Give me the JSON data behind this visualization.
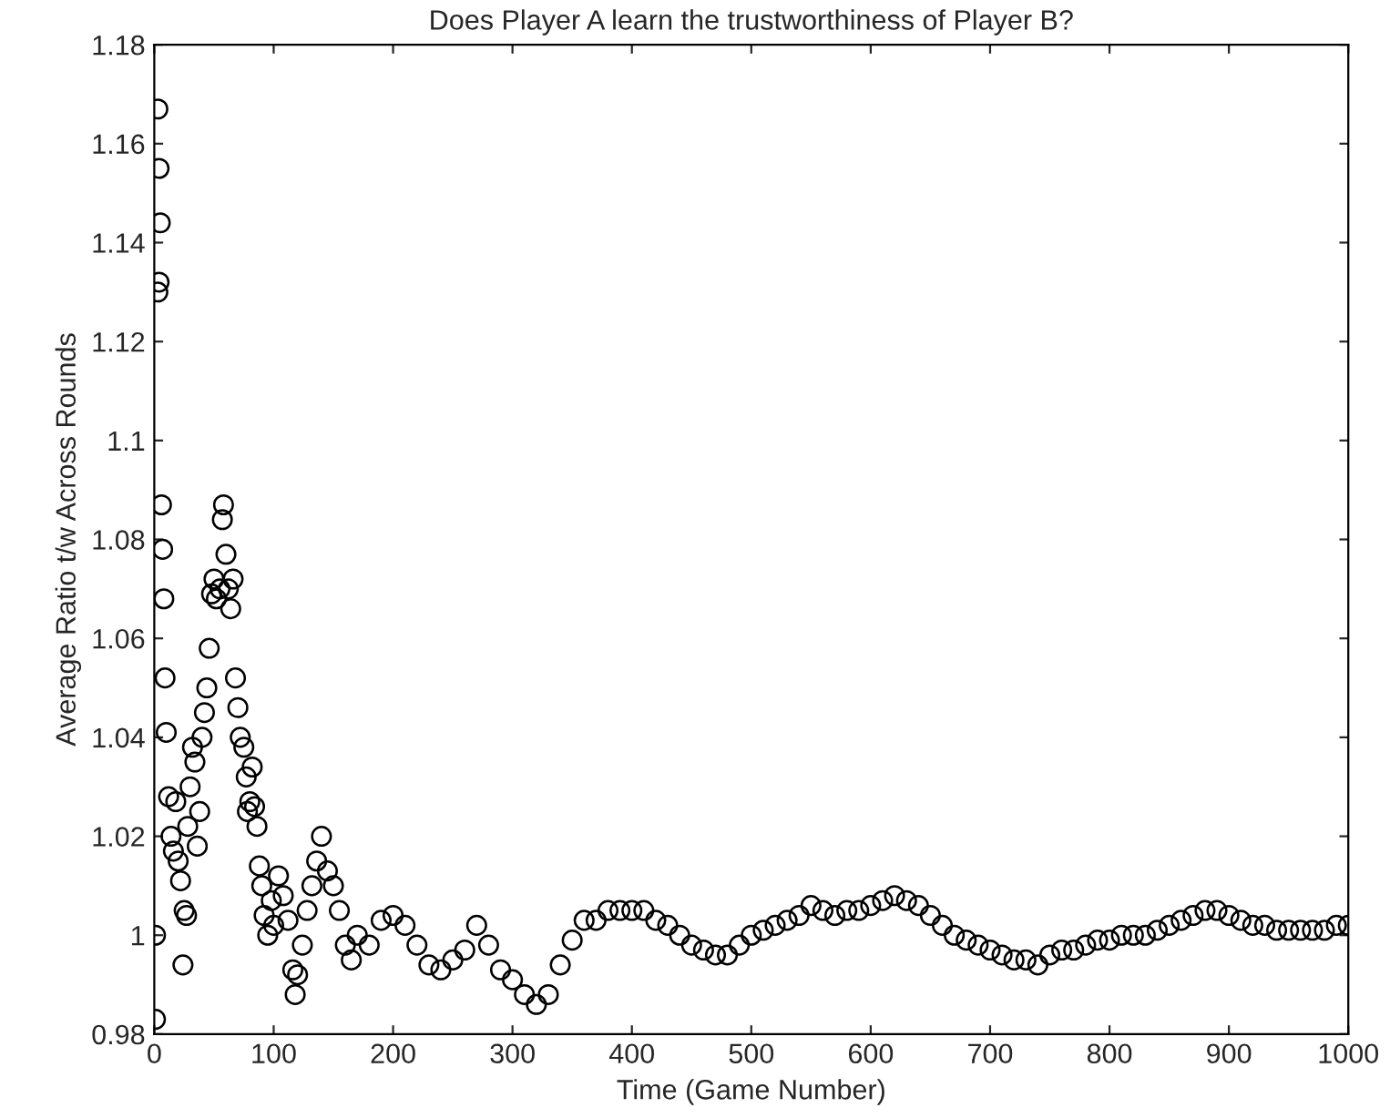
{
  "chart_data": {
    "type": "scatter",
    "title": "Does Player A learn the trustworthiness of Player B?",
    "xlabel": "Time (Game Number)",
    "ylabel": "Average Ratio t/w Across Rounds",
    "xlim": [
      0,
      1000
    ],
    "ylim": [
      0.98,
      1.18
    ],
    "xticks": [
      0,
      100,
      200,
      300,
      400,
      500,
      600,
      700,
      800,
      900,
      1000
    ],
    "yticks": [
      {
        "value": 0.98,
        "label": "0.98"
      },
      {
        "value": 1.0,
        "label": "1"
      },
      {
        "value": 1.02,
        "label": "1.02"
      },
      {
        "value": 1.04,
        "label": "1.04"
      },
      {
        "value": 1.06,
        "label": "1.06"
      },
      {
        "value": 1.08,
        "label": "1.08"
      },
      {
        "value": 1.1,
        "label": "1.1"
      },
      {
        "value": 1.12,
        "label": "1.12"
      },
      {
        "value": 1.14,
        "label": "1.14"
      },
      {
        "value": 1.16,
        "label": "1.16"
      },
      {
        "value": 1.18,
        "label": "1.18"
      }
    ],
    "marker": "circle",
    "grid": false,
    "series": [
      {
        "color": "#000000",
        "x": [
          1,
          1,
          3,
          4,
          5,
          4,
          3,
          6,
          7,
          8,
          9,
          10,
          12,
          14,
          16,
          18,
          20,
          22,
          24,
          25,
          27,
          28,
          30,
          32,
          34,
          36,
          38,
          40,
          42,
          44,
          46,
          48,
          50,
          52,
          55,
          57,
          58,
          60,
          62,
          64,
          66,
          68,
          70,
          72,
          75,
          77,
          78,
          80,
          82,
          84,
          86,
          88,
          90,
          92,
          95,
          98,
          100,
          104,
          108,
          112,
          116,
          118,
          120,
          124,
          128,
          132,
          136,
          140,
          145,
          150,
          155,
          160,
          165,
          170,
          180,
          190,
          200,
          210,
          220,
          230,
          240,
          250,
          260,
          270,
          280,
          290,
          300,
          310,
          320,
          330,
          340,
          350,
          360,
          370,
          380,
          390,
          400,
          410,
          420,
          430,
          440,
          450,
          460,
          470,
          480,
          490,
          500,
          510,
          520,
          530,
          540,
          550,
          560,
          570,
          580,
          590,
          600,
          610,
          620,
          630,
          640,
          650,
          660,
          670,
          680,
          690,
          700,
          710,
          720,
          730,
          740,
          750,
          760,
          770,
          780,
          790,
          800,
          810,
          820,
          830,
          840,
          850,
          860,
          870,
          880,
          890,
          900,
          910,
          920,
          930,
          940,
          950,
          960,
          970,
          980,
          990,
          1000
        ],
        "values": [
          0.983,
          1.0,
          1.167,
          1.155,
          1.144,
          1.132,
          1.13,
          1.087,
          1.078,
          1.068,
          1.052,
          1.041,
          1.028,
          1.02,
          1.017,
          1.027,
          1.015,
          1.011,
          0.994,
          1.005,
          1.004,
          1.022,
          1.03,
          1.038,
          1.035,
          1.018,
          1.025,
          1.04,
          1.045,
          1.05,
          1.058,
          1.069,
          1.072,
          1.068,
          1.07,
          1.084,
          1.087,
          1.077,
          1.07,
          1.066,
          1.072,
          1.052,
          1.046,
          1.04,
          1.038,
          1.032,
          1.025,
          1.027,
          1.034,
          1.026,
          1.022,
          1.014,
          1.01,
          1.004,
          1.0,
          1.007,
          1.002,
          1.012,
          1.008,
          1.003,
          0.993,
          0.988,
          0.992,
          0.998,
          1.005,
          1.01,
          1.015,
          1.02,
          1.013,
          1.01,
          1.005,
          0.998,
          0.995,
          1.0,
          0.998,
          1.003,
          1.004,
          1.002,
          0.998,
          0.994,
          0.993,
          0.995,
          0.997,
          1.002,
          0.998,
          0.993,
          0.991,
          0.988,
          0.986,
          0.988,
          0.994,
          0.999,
          1.003,
          1.003,
          1.005,
          1.005,
          1.005,
          1.005,
          1.003,
          1.002,
          1.0,
          0.998,
          0.997,
          0.996,
          0.996,
          0.998,
          1.0,
          1.001,
          1.002,
          1.003,
          1.004,
          1.006,
          1.005,
          1.004,
          1.005,
          1.005,
          1.006,
          1.007,
          1.008,
          1.007,
          1.006,
          1.004,
          1.002,
          1.0,
          0.999,
          0.998,
          0.997,
          0.996,
          0.995,
          0.995,
          0.994,
          0.996,
          0.997,
          0.997,
          0.998,
          0.999,
          0.999,
          1.0,
          1.0,
          1.0,
          1.001,
          1.002,
          1.003,
          1.004,
          1.005,
          1.005,
          1.004,
          1.003,
          1.002,
          1.002,
          1.001,
          1.001,
          1.001,
          1.001,
          1.001,
          1.002,
          1.002
        ]
      }
    ]
  }
}
